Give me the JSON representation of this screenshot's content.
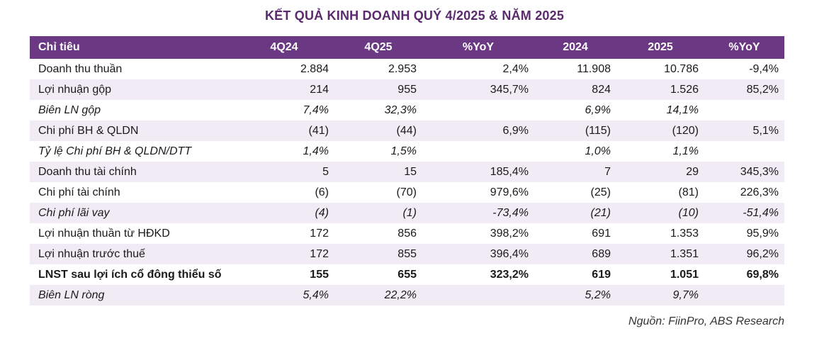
{
  "title": "KẾT QUẢ KINH DOANH QUÝ 4/2025 & NĂM 2025",
  "table": {
    "headers": [
      "Chỉ tiêu",
      "4Q24",
      "4Q25",
      "%YoY",
      "2024",
      "2025",
      "%YoY"
    ],
    "rows": [
      {
        "cells": [
          "Doanh thu thuần",
          "2.884",
          "2.953",
          "2,4%",
          "11.908",
          "10.786",
          "-9,4%"
        ],
        "style": "normal"
      },
      {
        "cells": [
          "Lợi nhuận gộp",
          "214",
          "955",
          "345,7%",
          "824",
          "1.526",
          "85,2%"
        ],
        "style": "normal"
      },
      {
        "cells": [
          "Biên LN gộp",
          "7,4%",
          "32,3%",
          "",
          "6,9%",
          "14,1%",
          ""
        ],
        "style": "italic"
      },
      {
        "cells": [
          "Chi phí BH & QLDN",
          "(41)",
          "(44)",
          "6,9%",
          "(115)",
          "(120)",
          "5,1%"
        ],
        "style": "normal"
      },
      {
        "cells": [
          "Tỷ lệ Chi phí BH & QLDN/DTT",
          "1,4%",
          "1,5%",
          "",
          "1,0%",
          "1,1%",
          ""
        ],
        "style": "italic"
      },
      {
        "cells": [
          "Doanh thu tài chính",
          "5",
          "15",
          "185,4%",
          "7",
          "29",
          "345,3%"
        ],
        "style": "normal"
      },
      {
        "cells": [
          "Chi phí tài chính",
          "(6)",
          "(70)",
          "979,6%",
          "(25)",
          "(81)",
          "226,3%"
        ],
        "style": "normal"
      },
      {
        "cells": [
          "Chi phí lãi vay",
          "(4)",
          "(1)",
          "-73,4%",
          "(21)",
          "(10)",
          "-51,4%"
        ],
        "style": "italic"
      },
      {
        "cells": [
          "Lợi nhuận thuần từ HĐKD",
          "172",
          "856",
          "398,2%",
          "691",
          "1.353",
          "95,9%"
        ],
        "style": "normal"
      },
      {
        "cells": [
          "Lợi nhuận trước thuế",
          "172",
          "855",
          "396,4%",
          "689",
          "1.351",
          "96,2%"
        ],
        "style": "normal"
      },
      {
        "cells": [
          "LNST sau lợi ích cổ đông thiểu số",
          "155",
          "655",
          "323,2%",
          "619",
          "1.051",
          "69,8%"
        ],
        "style": "bold"
      },
      {
        "cells": [
          "Biên LN ròng",
          "5,4%",
          "22,2%",
          "",
          "5,2%",
          "9,7%",
          ""
        ],
        "style": "italic"
      }
    ]
  },
  "source": "Nguồn: FiinPro, ABS Research",
  "colors": {
    "title": "#5b2a6e",
    "header_bg": "#6b3883",
    "row_shade": "#f1ebf5"
  }
}
